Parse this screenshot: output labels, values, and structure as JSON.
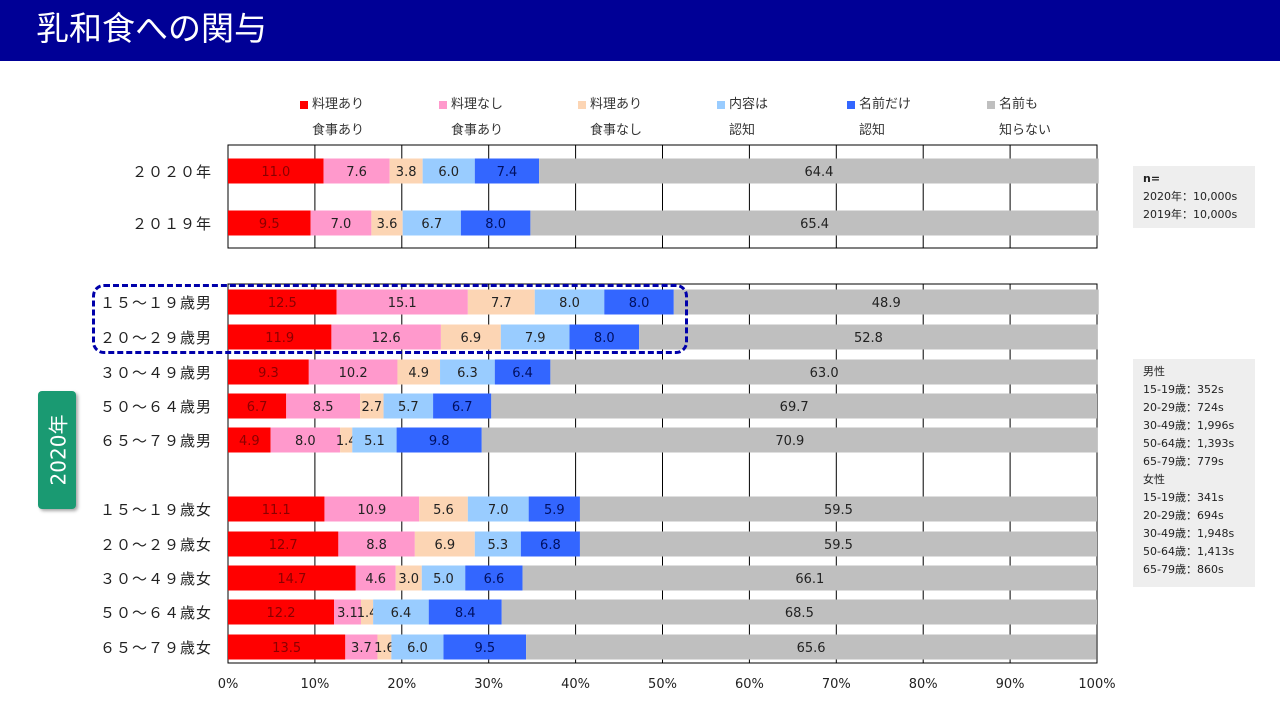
{
  "title": "乳和食への関与",
  "legend": [
    {
      "line1": "料理あり",
      "line2": "食事あり",
      "color": "#ff0000"
    },
    {
      "line1": "料理なし",
      "line2": "食事あり",
      "color": "#ff99cc"
    },
    {
      "line1": "料理あり",
      "line2": "食事なし",
      "color": "#fcd5b4"
    },
    {
      "line1": "内容は",
      "line2": "認知",
      "color": "#99ccff"
    },
    {
      "line1": "名前だけ",
      "line2": "認知",
      "color": "#3366ff"
    },
    {
      "line1": "名前も",
      "line2": "知らない",
      "color": "#bfbfbf"
    }
  ],
  "year_badge": "2020年",
  "note_overall": {
    "title": "n=",
    "lines": [
      "2020年：10,000s",
      "2019年：10,000s"
    ]
  },
  "note_segments": {
    "lines": [
      "男性",
      "15-19歳：352s",
      "20-29歳：724s",
      "30-49歳：1,996s",
      "50-64歳：1,393s",
      "65-79歳：779s",
      "女性",
      "15-19歳：341s",
      "20-29歳：694s",
      "30-49歳：1,948s",
      "50-64歳：1,413s",
      "65-79歳：860s"
    ]
  },
  "chart_data": {
    "type": "bar",
    "orientation": "horizontal",
    "stacked": "100%",
    "xlim": [
      0,
      100
    ],
    "x_ticks": [
      "0%",
      "10%",
      "20%",
      "30%",
      "40%",
      "50%",
      "60%",
      "70%",
      "80%",
      "90%",
      "100%"
    ],
    "series_names": [
      "料理あり 食事あり",
      "料理なし 食事あり",
      "料理あり 食事なし",
      "内容は 認知",
      "名前だけ 認知",
      "名前も 知らない"
    ],
    "colors": [
      "#ff0000",
      "#ff99cc",
      "#fcd5b4",
      "#99ccff",
      "#3366ff",
      "#bfbfbf"
    ],
    "groups": [
      {
        "rows": [
          {
            "label": "２０２０年",
            "values": [
              11.0,
              7.6,
              3.8,
              6.0,
              7.4,
              64.4
            ],
            "texts": [
              "11.0",
              "7.6",
              "3.8",
              "6.0",
              "7.4",
              "64.4"
            ]
          },
          {
            "label": "２０１９年",
            "values": [
              9.5,
              7.0,
              3.6,
              6.7,
              8.0,
              65.4
            ],
            "texts": [
              "9.5",
              "7.0",
              "3.6",
              "6.7",
              "8.0",
              "65.4"
            ]
          }
        ]
      },
      {
        "rows": [
          {
            "label": "１５～１９歳男",
            "values": [
              12.5,
              15.1,
              7.7,
              8.0,
              8.0,
              48.9
            ],
            "texts": [
              "12.5",
              "15.1",
              "7.7",
              "8.0",
              "8.0",
              "48.9"
            ]
          },
          {
            "label": "２０～２９歳男",
            "values": [
              11.9,
              12.6,
              6.9,
              7.9,
              8.0,
              52.8
            ],
            "texts": [
              "11.9",
              "12.6",
              "6.9",
              "7.9",
              "8.0",
              "52.8"
            ]
          },
          {
            "label": "３０～４９歳男",
            "values": [
              9.3,
              10.2,
              4.9,
              6.3,
              6.4,
              63.0
            ],
            "texts": [
              "9.3",
              "10.2",
              "4.9",
              "6.3",
              "6.4",
              "63.0"
            ]
          },
          {
            "label": "５０～６４歳男",
            "values": [
              6.7,
              8.5,
              2.7,
              5.7,
              6.7,
              69.7
            ],
            "texts": [
              "6.7",
              "8.5",
              "2.7",
              "5.7",
              "6.7",
              "69.7"
            ]
          },
          {
            "label": "６５～７９歳男",
            "values": [
              4.9,
              8.0,
              1.4,
              5.1,
              9.8,
              70.9
            ],
            "texts": [
              "4.9",
              "8.0",
              "1.4",
              "5.1",
              "9.8",
              "70.9"
            ]
          },
          {
            "label": "１５～１９歳女",
            "values": [
              11.1,
              10.9,
              5.6,
              7.0,
              5.9,
              59.5
            ],
            "texts": [
              "11.1",
              "10.9",
              "5.6",
              "7.0",
              "5.9",
              "59.5"
            ]
          },
          {
            "label": "２０～２９歳女",
            "values": [
              12.7,
              8.8,
              6.9,
              5.3,
              6.8,
              59.5
            ],
            "texts": [
              "12.7",
              "8.8",
              "6.9",
              "5.3",
              "6.8",
              "59.5"
            ]
          },
          {
            "label": "３０～４９歳女",
            "values": [
              14.7,
              4.6,
              3.0,
              5.0,
              6.6,
              66.1
            ],
            "texts": [
              "14.7",
              "4.6",
              "3.0",
              "5.0",
              "6.6",
              "66.1"
            ]
          },
          {
            "label": "５０～６４歳女",
            "values": [
              12.2,
              3.1,
              1.4,
              6.4,
              8.4,
              68.5
            ],
            "texts": [
              "12.2",
              "3.1",
              "1.4",
              "6.4",
              "8.4",
              "68.5"
            ]
          },
          {
            "label": "６５～７９歳女",
            "values": [
              13.5,
              3.7,
              1.6,
              6.0,
              9.5,
              65.6
            ],
            "texts": [
              "13.5",
              "3.7",
              "1.6",
              "6.0",
              "9.5",
              "65.6"
            ]
          }
        ]
      }
    ]
  }
}
